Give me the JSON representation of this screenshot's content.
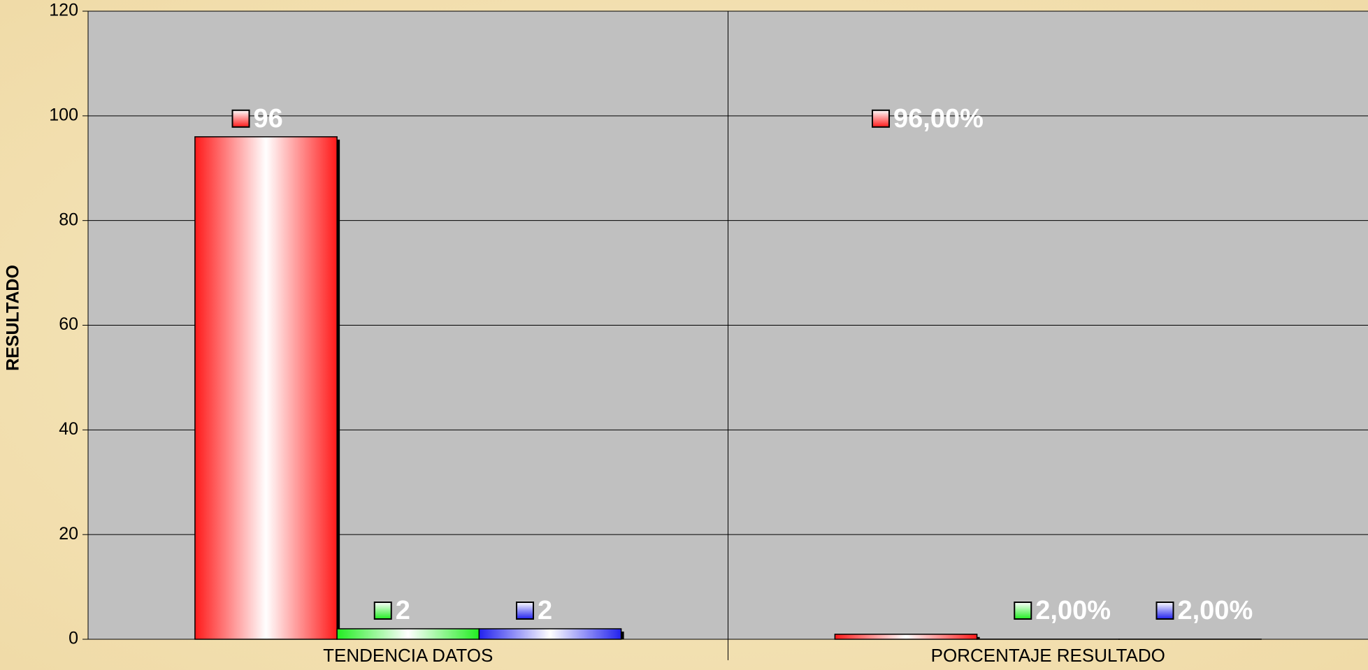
{
  "chart_data": {
    "type": "bar",
    "y_label": "RESULTADO",
    "categories": [
      "TENDENCIA DATOS",
      "PORCENTAJE RESULTADO"
    ],
    "series": [
      {
        "color": "#ff1a1a",
        "values": [
          96,
          0.96
        ],
        "value_labels": [
          "96",
          "96,00%"
        ]
      },
      {
        "color": "#22ee22",
        "values": [
          2,
          0.02
        ],
        "value_labels": [
          "2",
          "2,00%"
        ]
      },
      {
        "color": "#2222ee",
        "values": [
          2,
          0.02
        ],
        "value_labels": [
          "2",
          "2,00%"
        ]
      }
    ],
    "ylim": [
      0,
      120
    ],
    "yticks": [
      0,
      20,
      40,
      60,
      80,
      100,
      120
    ],
    "grid": true
  }
}
